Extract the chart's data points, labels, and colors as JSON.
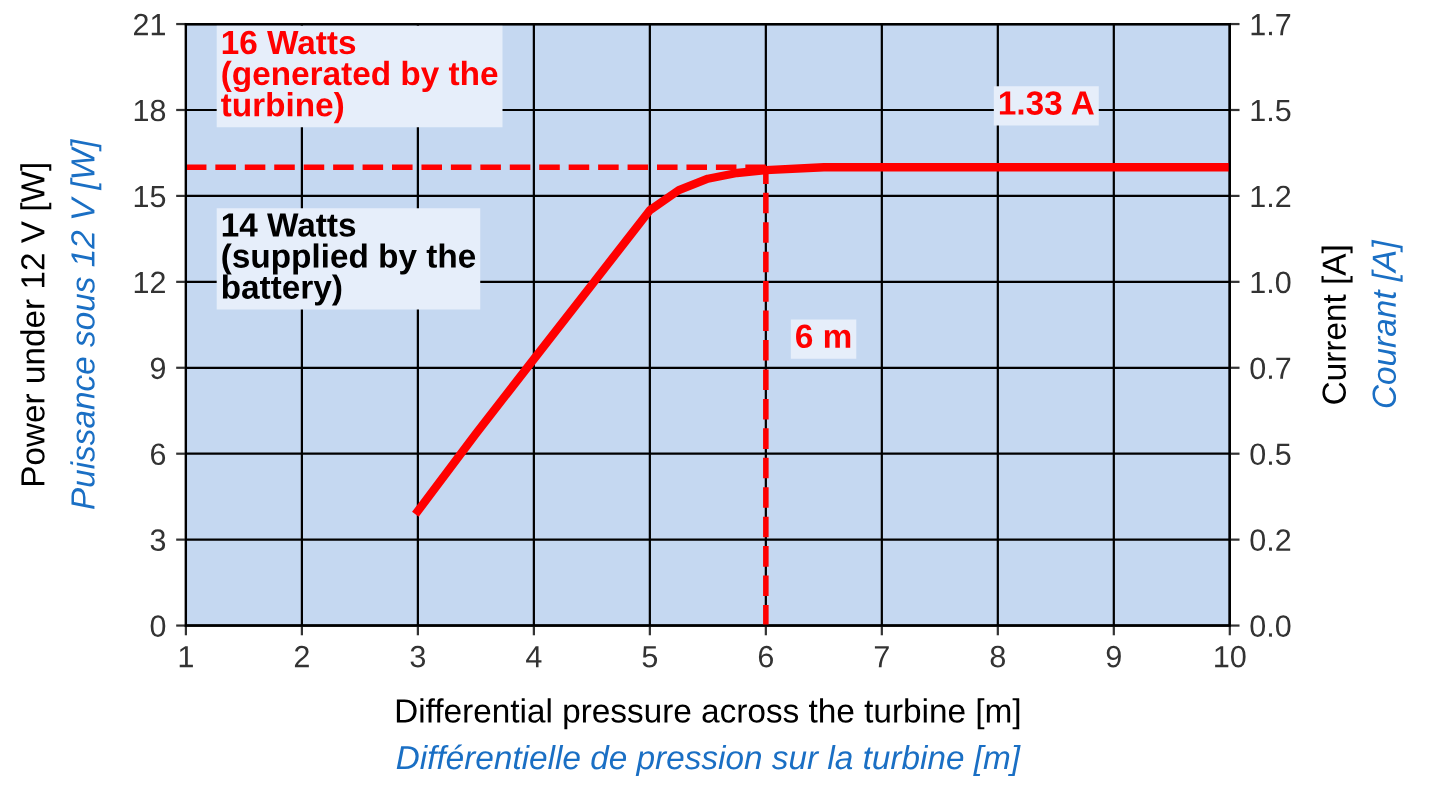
{
  "chart_data": {
    "type": "line",
    "xlabel": "Differential pressure across the turbine [m]\nDifférentielle de pression sur la turbine [m]",
    "ylabel": "Power under 12 V [W]\nPuissance sous 12 V [W]",
    "y2label": "Current [A]\nCourant [A]",
    "x": [
      3,
      3.5,
      4,
      4.5,
      5,
      5.25,
      5.5,
      5.75,
      6,
      6.5,
      7,
      8,
      9,
      10
    ],
    "series": [
      {
        "color": "#ff0000",
        "values": [
          4,
          6.7,
          9.3,
          11.9,
          14.5,
          15.2,
          15.6,
          15.8,
          15.9,
          16,
          16,
          16,
          16,
          16
        ]
      }
    ],
    "xlim": [
      1,
      10
    ],
    "xticks": [
      1,
      2,
      3,
      4,
      5,
      6,
      7,
      8,
      9,
      10
    ],
    "ylim": [
      0,
      21
    ],
    "yticks": [
      0,
      3,
      6,
      9,
      12,
      15,
      18,
      21
    ],
    "y2lim": [
      0,
      1.75
    ],
    "y2ticks": [
      {
        "value": 0,
        "label": "0.0"
      },
      {
        "value": 0.25,
        "label": "0.2"
      },
      {
        "value": 0.5,
        "label": "0.5"
      },
      {
        "value": 0.75,
        "label": "0.7"
      },
      {
        "value": 1.0,
        "label": "1.0"
      },
      {
        "value": 1.25,
        "label": "1.2"
      },
      {
        "value": 1.5,
        "label": "1.5"
      },
      {
        "value": 1.75,
        "label": "1.7"
      }
    ],
    "ref_lines": [
      {
        "axis": "y",
        "value": 16,
        "color": "#ff0000",
        "line_style": "dashed"
      },
      {
        "axis": "x",
        "value": 6,
        "color": "#ff0000",
        "line_style": "dashed"
      }
    ],
    "annotations": [
      "16 Watts\n(generated by the\nturbine)",
      "14 Watts\n(supplied by the\nbattery)",
      {
        "text": "1.33 A",
        "x": 8,
        "y": 16
      },
      {
        "text": "6 m",
        "x": 6,
        "y": 10
      }
    ],
    "grid": true,
    "legend": false,
    "marker": "none",
    "line_style": "solid"
  }
}
